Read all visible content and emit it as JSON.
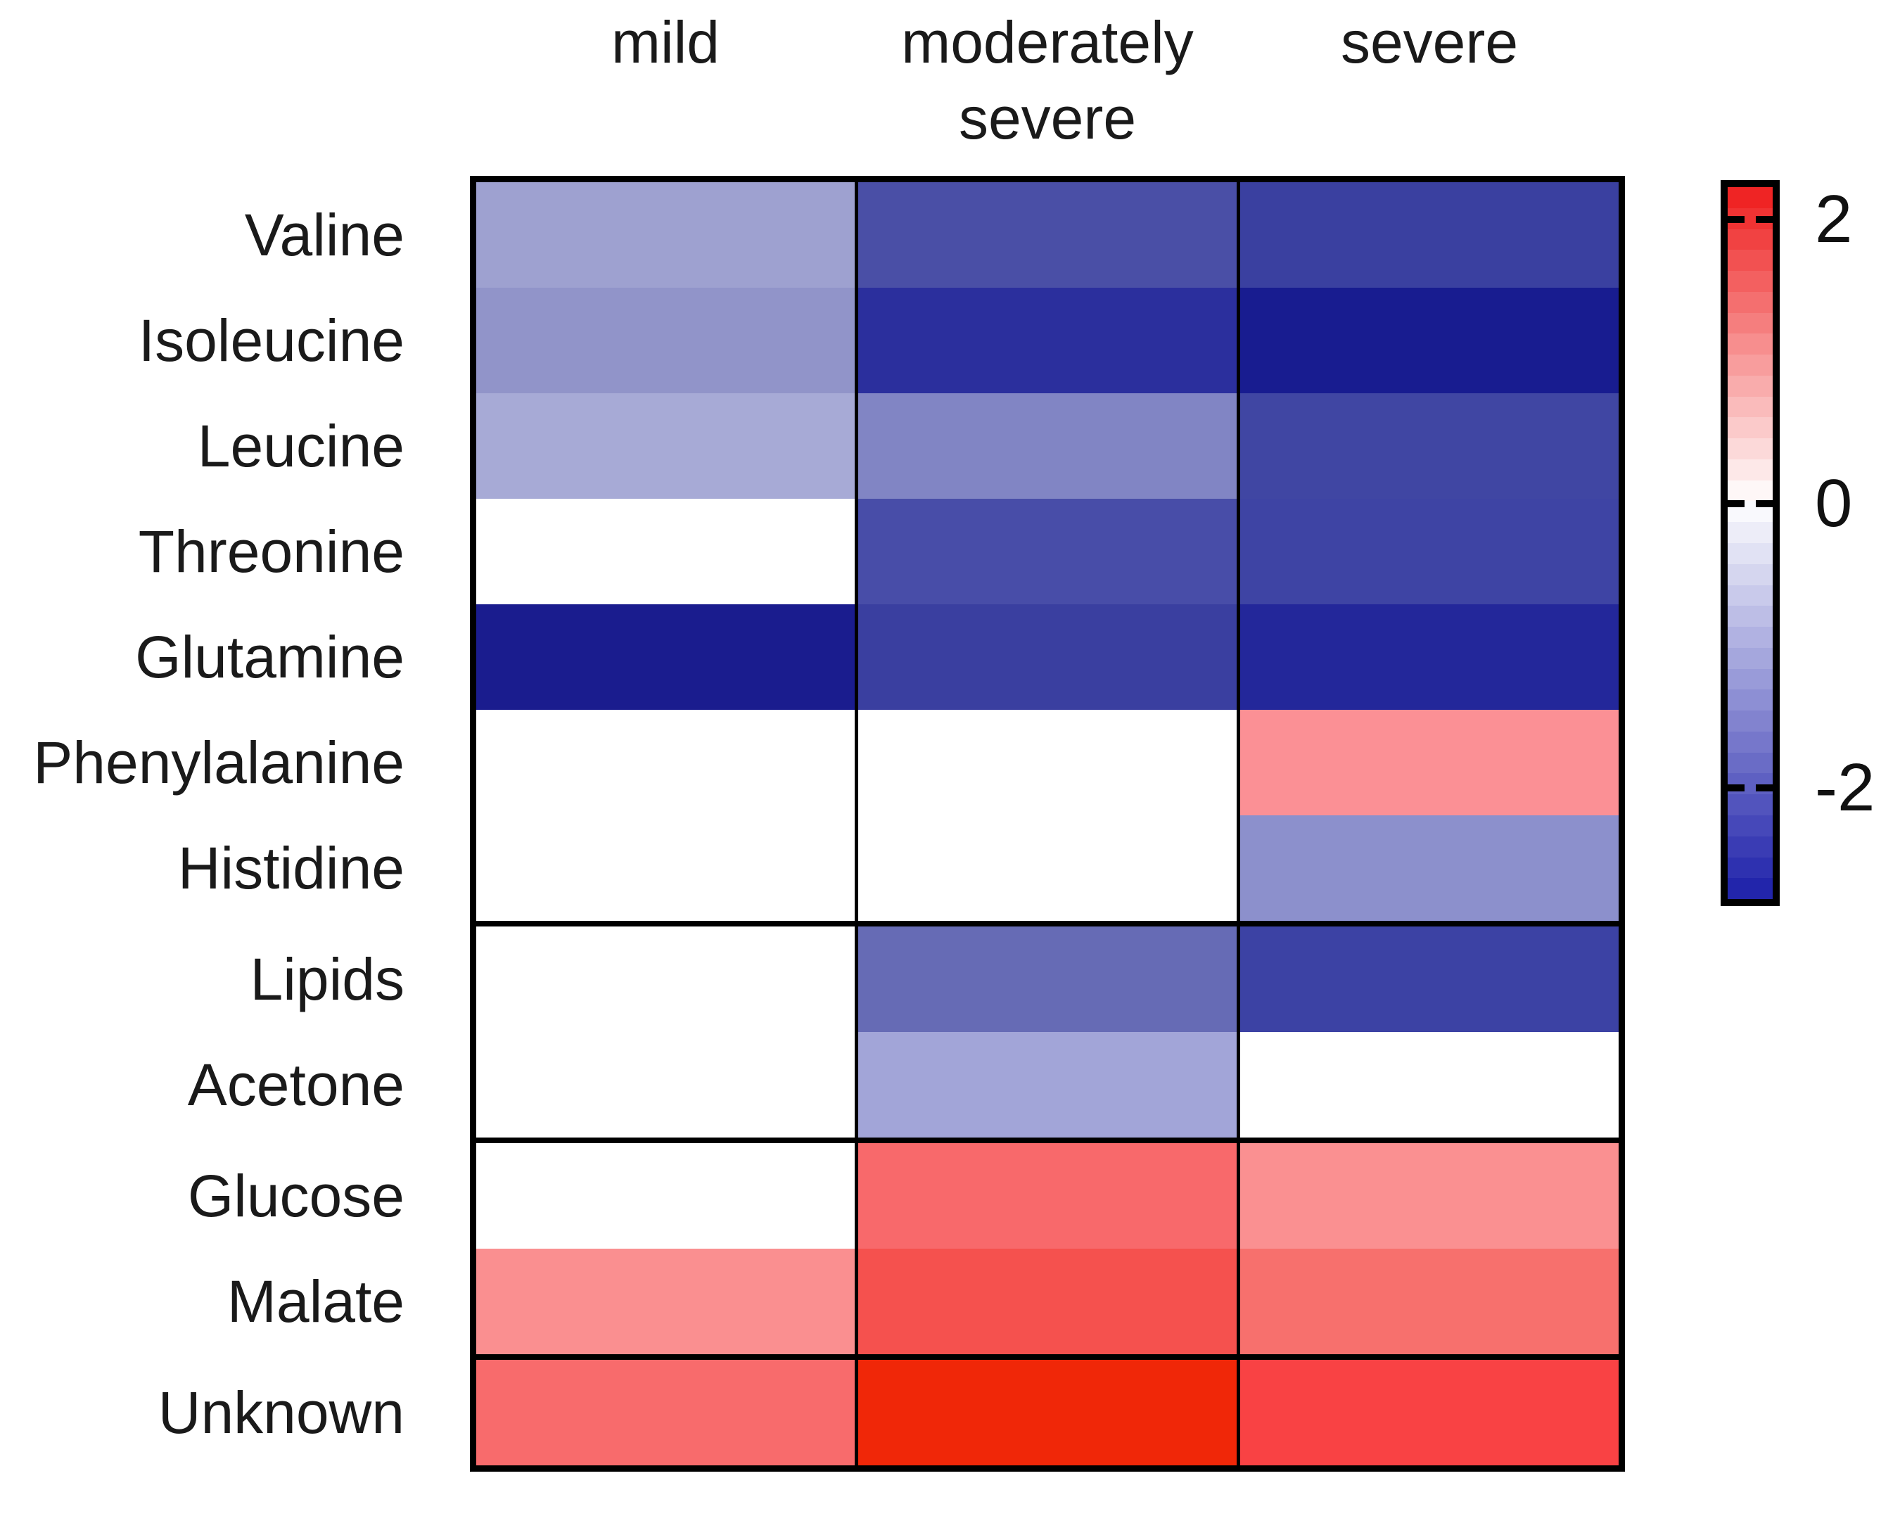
{
  "figure_background": "#ffffff",
  "chart_data": {
    "type": "heatmap",
    "title": "",
    "xlabel": "",
    "ylabel": "",
    "columns": [
      "mild",
      "moderately severe",
      "severe"
    ],
    "rows": [
      "Valine",
      "Isoleucine",
      "Leucine",
      "Threonine",
      "Glutamine",
      "Phenylalanine",
      "Histidine",
      "Lipids",
      "Acetone",
      "Glucose",
      "Malate",
      "Unknown"
    ],
    "group_separators_after_rows": [
      6,
      8,
      10
    ],
    "values": [
      [
        -1.15,
        -2.05,
        -2.25
      ],
      [
        -1.3,
        -2.45,
        -2.7
      ],
      [
        -1.0,
        -1.55,
        -2.2
      ],
      [
        0.0,
        -2.08,
        -2.22
      ],
      [
        -2.72,
        -2.28,
        -2.58
      ],
      [
        0.0,
        0.0,
        1.05
      ],
      [
        0.0,
        0.0,
        -1.4
      ],
      [
        0.0,
        -1.85,
        -2.25
      ],
      [
        0.0,
        -1.05,
        0.0
      ],
      [
        0.0,
        1.55,
        1.05
      ],
      [
        1.1,
        1.75,
        1.45
      ],
      [
        1.55,
        2.15,
        1.9
      ]
    ],
    "cell_colors": [
      [
        "#9EA1D0",
        "#4A4FA6",
        "#3A40A0"
      ],
      [
        "#9194C9",
        "#2B2F9D",
        "#181C90"
      ],
      [
        "#A7AAD6",
        "#8185C4",
        "#4046A3"
      ],
      [
        "#FFFFFF",
        "#484DA8",
        "#3E44A4"
      ],
      [
        "#1A1C8E",
        "#3A3FA0",
        "#23279A"
      ],
      [
        "#FFFFFF",
        "#FFFFFF",
        "#FB9095"
      ],
      [
        "#FFFFFF",
        "#FFFFFF",
        "#8C90CC"
      ],
      [
        "#FFFFFF",
        "#666BB5",
        "#3C42A4"
      ],
      [
        "#FFFFFF",
        "#A2A5D8",
        "#FFFFFF"
      ],
      [
        "#FFFFFF",
        "#F8696B",
        "#FA9091"
      ],
      [
        "#FA8F90",
        "#F5514E",
        "#F7706D"
      ],
      [
        "#F86B6C",
        "#F02708",
        "#F94244"
      ]
    ],
    "colorbar": {
      "vmax": 2.21,
      "vmin": -2.8,
      "bands": 34,
      "color_positive_end": "#EE1C1C",
      "color_zero": "#FFFFFF",
      "color_negative_end": "#1C1FA9",
      "ticks": [
        {
          "label": "2",
          "value": 2
        },
        {
          "label": "0",
          "value": 0
        },
        {
          "label": "-2",
          "value": -2
        }
      ]
    }
  }
}
